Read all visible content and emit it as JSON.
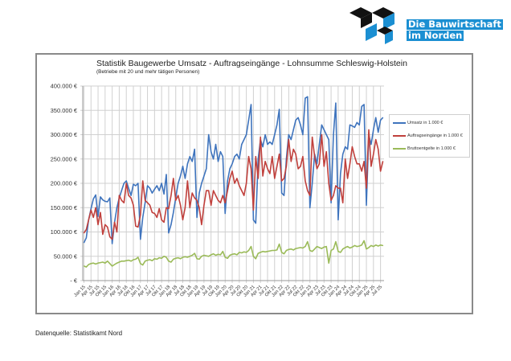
{
  "logo": {
    "line1": "Die Bauwirtschaft",
    "line2": "im Norden"
  },
  "source": "Datenquelle: Statistikamt Nord",
  "chart_data": {
    "type": "line",
    "title": "Statistik Baugewerbe Umsatz - Auftragseingänge - Lohnsumme Schleswig-Holstein",
    "subtitle": "(Betriebe mit 20 und mehr tätigen Personen)",
    "xlabel": "",
    "ylabel": "",
    "ylim": [
      0,
      400000
    ],
    "grid": true,
    "legend_position": "right",
    "y_ticks": [
      0,
      50000,
      100000,
      150000,
      200000,
      250000,
      300000,
      350000,
      400000
    ],
    "y_tick_labels": [
      "- €",
      "50.000 €",
      "100.000 €",
      "150.000 €",
      "200.000 €",
      "250.000 €",
      "300.000 €",
      "350.000 €",
      "400.000 €"
    ],
    "x_range": [
      "Jan 15",
      "Aug 25"
    ],
    "x_tick_labels": [
      "Jan 15",
      "Apr 15",
      "Jul 15",
      "Okt 15",
      "Jan 16",
      "Apr 16",
      "Jul 16",
      "Okt 16",
      "Jan 17",
      "Apr 17",
      "Jul 17",
      "Okt 17",
      "Jan 18",
      "Apr 18",
      "Jul 18",
      "Okt 18",
      "Jan 19",
      "Apr 19",
      "Jul 19",
      "Okt 19",
      "Jan 20",
      "Apr 20",
      "Jul 20",
      "Okt 20",
      "Jan 21",
      "Apr 21",
      "Jul 21",
      "Okt 21",
      "Jan 22",
      "Apr 22",
      "Jul 22",
      "Okt 22",
      "Jan 23",
      "Apr 23",
      "Jul 23",
      "Okt 23",
      "Jan 24",
      "Apr 24",
      "Jul 24",
      "Okt 24",
      "Jan 25",
      "Apr 25",
      "Jul 25"
    ],
    "series": [
      {
        "name": "Umsatz in 1.000 €",
        "color": "#3f74bd",
        "values": [
          78000,
          88000,
          125000,
          148000,
          168000,
          176000,
          132000,
          172000,
          166000,
          163000,
          162000,
          170000,
          76000,
          120000,
          150000,
          170000,
          185000,
          200000,
          205000,
          190000,
          175000,
          198000,
          195000,
          200000,
          85000,
          130000,
          160000,
          195000,
          190000,
          180000,
          188000,
          195000,
          185000,
          200000,
          178000,
          218000,
          98000,
          115000,
          140000,
          170000,
          200000,
          215000,
          235000,
          210000,
          240000,
          255000,
          245000,
          270000,
          130000,
          180000,
          200000,
          215000,
          230000,
          300000,
          265000,
          250000,
          280000,
          245000,
          265000,
          255000,
          138000,
          205000,
          230000,
          240000,
          255000,
          260000,
          250000,
          280000,
          290000,
          300000,
          330000,
          362000,
          125000,
          118000,
          250000,
          290000,
          275000,
          300000,
          280000,
          285000,
          280000,
          300000,
          320000,
          352000,
          180000,
          175000,
          250000,
          300000,
          290000,
          310000,
          330000,
          335000,
          320000,
          300000,
          375000,
          378000,
          150000,
          200000,
          260000,
          240000,
          280000,
          320000,
          310000,
          300000,
          290000,
          160000,
          300000,
          365000,
          125000,
          220000,
          260000,
          275000,
          270000,
          320000,
          318000,
          315000,
          325000,
          320000,
          358000,
          362000,
          155000,
          300000,
          280000,
          310000,
          335000,
          305000,
          330000,
          335000
        ]
      },
      {
        "name": "Auftragseingänge in 1.000 €",
        "color": "#c0403c",
        "values": [
          98000,
          105000,
          125000,
          145000,
          130000,
          150000,
          115000,
          140000,
          95000,
          115000,
          110000,
          90000,
          85000,
          120000,
          100000,
          175000,
          165000,
          160000,
          200000,
          175000,
          170000,
          155000,
          112000,
          110000,
          135000,
          205000,
          165000,
          160000,
          155000,
          140000,
          138000,
          130000,
          148000,
          125000,
          120000,
          150000,
          148000,
          175000,
          210000,
          165000,
          175000,
          155000,
          125000,
          150000,
          205000,
          150000,
          180000,
          170000,
          165000,
          150000,
          115000,
          155000,
          185000,
          185000,
          155000,
          185000,
          175000,
          165000,
          160000,
          175000,
          160000,
          185000,
          210000,
          225000,
          200000,
          210000,
          195000,
          185000,
          175000,
          200000,
          255000,
          230000,
          145000,
          255000,
          210000,
          295000,
          215000,
          245000,
          230000,
          220000,
          255000,
          210000,
          235000,
          260000,
          205000,
          210000,
          235000,
          290000,
          245000,
          270000,
          260000,
          230000,
          235000,
          255000,
          205000,
          185000,
          175000,
          295000,
          255000,
          230000,
          240000,
          300000,
          235000,
          265000,
          200000,
          165000,
          175000,
          195000,
          190000,
          190000,
          160000,
          250000,
          210000,
          240000,
          275000,
          255000,
          240000,
          240000,
          225000,
          245000,
          190000,
          310000,
          235000,
          260000,
          290000,
          270000,
          225000,
          245000
        ]
      },
      {
        "name": "Bruttoentgelte in 1.000 €",
        "color": "#9bbb59",
        "values": [
          30000,
          28000,
          33000,
          35000,
          36000,
          34000,
          36000,
          37000,
          38000,
          36000,
          40000,
          35000,
          30000,
          33000,
          36000,
          38000,
          40000,
          40000,
          41000,
          42000,
          40000,
          43000,
          44000,
          48000,
          35000,
          32000,
          40000,
          42000,
          43000,
          41000,
          45000,
          44000,
          47000,
          46000,
          50000,
          48000,
          40000,
          38000,
          44000,
          46000,
          47000,
          45000,
          48000,
          49000,
          48000,
          50000,
          52000,
          56000,
          45000,
          44000,
          50000,
          52000,
          51000,
          50000,
          53000,
          55000,
          52000,
          54000,
          53000,
          60000,
          48000,
          46000,
          52000,
          54000,
          55000,
          53000,
          58000,
          57000,
          59000,
          58000,
          62000,
          70000,
          50000,
          45000,
          56000,
          58000,
          60000,
          59000,
          60000,
          61000,
          62000,
          62000,
          63000,
          75000,
          58000,
          55000,
          62000,
          64000,
          65000,
          63000,
          66000,
          67000,
          68000,
          67000,
          70000,
          80000,
          62000,
          60000,
          65000,
          70000,
          68000,
          66000,
          69000,
          70000,
          36000,
          62000,
          65000,
          80000,
          60000,
          58000,
          65000,
          68000,
          70000,
          67000,
          69000,
          72000,
          70000,
          71000,
          73000,
          82000,
          65000,
          68000,
          72000,
          70000,
          73000,
          71000,
          73000,
          72000
        ]
      }
    ]
  }
}
